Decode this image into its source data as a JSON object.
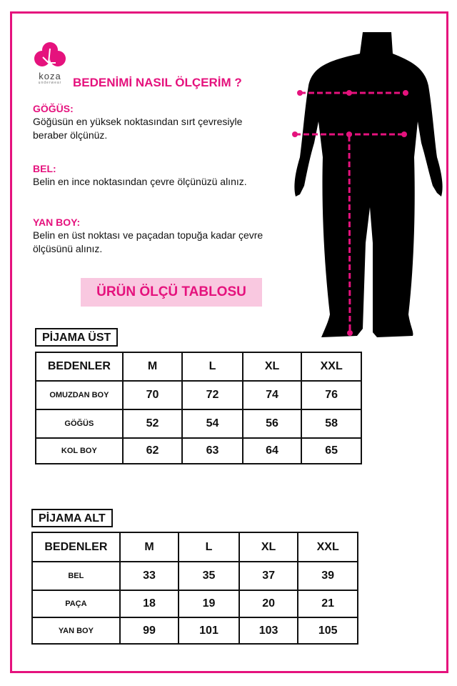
{
  "brand": {
    "name": "koza",
    "tagline": "underwear",
    "color": "#e5127d"
  },
  "title": "BEDENİMİ NASIL ÖLÇERİM ?",
  "sections": [
    {
      "heading": "GÖĞÜS:",
      "text": "Göğüsün en yüksek noktasından sırt çevresiyle beraber ölçünüz."
    },
    {
      "heading": "BEL:",
      "text": "Belin en ince noktasından çevre ölçünüzü alınız."
    },
    {
      "heading": "YAN BOY:",
      "text": "Belin en üst noktası ve paçadan topuğa kadar çevre ölçüsünü alınız."
    }
  ],
  "banner": "ÜRÜN ÖLÇÜ TABLOSU",
  "tables": [
    {
      "label": "PİJAMA ÜST",
      "header": [
        "BEDENLER",
        "M",
        "L",
        "XL",
        "XXL"
      ],
      "rows": [
        [
          "OMUZDAN BOY",
          "70",
          "72",
          "74",
          "76"
        ],
        [
          "GÖĞÜS",
          "52",
          "54",
          "56",
          "58"
        ],
        [
          "KOL BOY",
          "62",
          "63",
          "64",
          "65"
        ]
      ]
    },
    {
      "label": "PİJAMA ALT",
      "header": [
        "BEDENLER",
        "M",
        "L",
        "XL",
        "XXL"
      ],
      "rows": [
        [
          "BEL",
          "33",
          "35",
          "37",
          "39"
        ],
        [
          "PAÇA",
          "18",
          "19",
          "20",
          "21"
        ],
        [
          "YAN BOY",
          "99",
          "101",
          "103",
          "105"
        ]
      ]
    }
  ]
}
